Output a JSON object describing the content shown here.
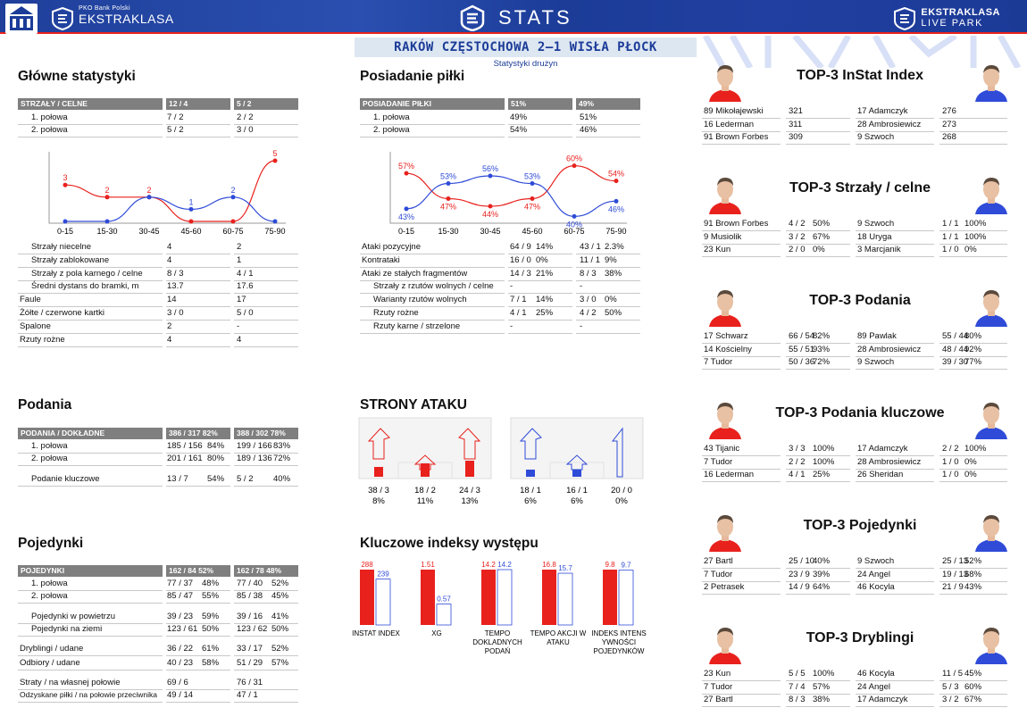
{
  "header": {
    "bank_line": "PKO Bank Polski",
    "league": "EKSTRAKLASA",
    "center_title": "STATS",
    "right_a": "EKSTRAKLASA",
    "right_b": "LIVE PARK",
    "match": "RAKÓW CZĘSTOCHOWA 2–1 WISŁA PŁOCK",
    "subtitle": "Statystyki drużyn"
  },
  "colors": {
    "home": "#e8211d",
    "away": "#2f4bd8",
    "navy": "#1c3c98",
    "grey": "#7f7f7f"
  },
  "glowne": {
    "title": "Główne statystyki",
    "head": [
      "STRZAŁY / CELNE",
      "12 / 4",
      "5 / 2"
    ],
    "halves": [
      [
        "1. połowa",
        "7 / 2",
        "2 / 2"
      ],
      [
        "2. połowa",
        "5 / 2",
        "3 / 0"
      ]
    ],
    "chart_data": {
      "type": "line",
      "categories": [
        "0-15",
        "15-30",
        "30-45",
        "45-60",
        "60-75",
        "75-90"
      ],
      "series": [
        {
          "color": "#e8211d",
          "values": [
            3,
            2,
            2,
            0,
            0,
            5
          ]
        },
        {
          "color": "#2f4bd8",
          "values": [
            0,
            0,
            2,
            1,
            2,
            0
          ]
        }
      ],
      "ylim": [
        0,
        5
      ],
      "labels_home": [
        "3",
        "2",
        "2",
        "",
        "",
        "5"
      ],
      "labels_away": [
        "",
        "",
        "",
        "1",
        "2",
        ""
      ]
    },
    "rows": [
      [
        "Strzały niecelne",
        "4",
        "2",
        true
      ],
      [
        "Strzały zablokowane",
        "4",
        "1",
        true
      ],
      [
        "Strzały z pola karnego / celne",
        "8 / 3",
        "4 / 1",
        true
      ],
      [
        "Średni dystans do bramki, m",
        "13.7",
        "17.6",
        true
      ],
      [
        "Faule",
        "14",
        "17",
        false
      ],
      [
        "Żółte / czerwone kartki",
        "3 / 0",
        "5 / 0",
        false
      ],
      [
        "Spalone",
        "2",
        "-",
        false
      ],
      [
        "Rzuty rożne",
        "4",
        "4",
        false
      ]
    ]
  },
  "posiadanie": {
    "title": "Posiadanie piłki",
    "head": [
      "POSIADANIE PIŁKI",
      "51%",
      "49%"
    ],
    "halves": [
      [
        "1. połowa",
        "49%",
        "51%"
      ],
      [
        "2. połowa",
        "54%",
        "46%"
      ]
    ],
    "chart_data": {
      "type": "line",
      "categories": [
        "0-15",
        "15-30",
        "30-45",
        "45-60",
        "60-75",
        "75-90"
      ],
      "series": [
        {
          "color": "#e8211d",
          "values": [
            57,
            47,
            44,
            47,
            60,
            54
          ]
        },
        {
          "color": "#2f4bd8",
          "values": [
            43,
            53,
            56,
            53,
            40,
            46
          ]
        }
      ],
      "ylim": [
        38,
        62
      ],
      "labels_home": [
        "57%",
        "47%",
        "44%",
        "47%",
        "60%",
        "54%"
      ],
      "labels_away": [
        "43%",
        "53%",
        "56%",
        "53%",
        "40%",
        "46%"
      ]
    },
    "rows": [
      [
        "Ataki pozycyjne",
        "64 / 9",
        "14%",
        "43 / 1",
        "2.3%",
        false
      ],
      [
        "Kontrataki",
        "16 / 0",
        "0%",
        "11 / 1",
        "9%",
        false
      ],
      [
        "Ataki ze stałych fragmentów",
        "14 / 3",
        "21%",
        "8 / 3",
        "38%",
        false
      ],
      [
        "Strzały z rzutów wolnych / celne",
        "-",
        "",
        "-",
        "",
        true
      ],
      [
        "Warianty rzutów wolnych",
        "7 / 1",
        "14%",
        "3 / 0",
        "0%",
        true
      ],
      [
        "Rzuty rożne",
        "4 / 1",
        "25%",
        "4 / 2",
        "50%",
        true
      ],
      [
        "Rzuty karne / strzelone",
        "-",
        "",
        "-",
        "",
        true
      ]
    ]
  },
  "podania": {
    "title": "Podania",
    "head": [
      "PODANIA / DOKŁADNE",
      "386 / 317 82%",
      "388 / 302 78%"
    ],
    "rows": [
      [
        "1. połowa",
        "185 / 156",
        "84%",
        "199 / 166",
        "83%"
      ],
      [
        "2. połowa",
        "201 / 161",
        "80%",
        "189 / 136",
        "72%"
      ],
      [
        "Podanie kluczowe",
        "13 / 7",
        "54%",
        "5 / 2",
        "40%"
      ]
    ]
  },
  "strony": {
    "title": "STRONY ATAKU",
    "home": [
      {
        "v": "38 / 3",
        "p": "8%",
        "pct": 8
      },
      {
        "v": "18 / 2",
        "p": "11%",
        "pct": 11
      },
      {
        "v": "24 / 3",
        "p": "13%",
        "pct": 13
      }
    ],
    "away": [
      {
        "v": "18 / 1",
        "p": "6%",
        "pct": 6
      },
      {
        "v": "16 / 1",
        "p": "6%",
        "pct": 6
      },
      {
        "v": "20 / 0",
        "p": "0%",
        "pct": 0
      }
    ]
  },
  "pojedynki": {
    "title": "Pojedynki",
    "head": [
      "POJEDYNKI",
      "162 / 84 52%",
      "162 / 78 48%"
    ],
    "rows": [
      [
        "1. połowa",
        "77 / 37",
        "48%",
        "77 / 40",
        "52%",
        true
      ],
      [
        "2. połowa",
        "85 / 47",
        "55%",
        "85 / 38",
        "45%",
        true
      ],
      [
        "Pojedynki w powietrzu",
        "39 / 23",
        "59%",
        "39 / 16",
        "41%",
        true
      ],
      [
        "Pojedynki na ziemi",
        "123 / 61",
        "50%",
        "123 / 62",
        "50%",
        true
      ],
      [
        "Dryblingi / udane",
        "36 / 22",
        "61%",
        "33 / 17",
        "52%",
        false
      ],
      [
        "Odbiory / udane",
        "40 / 23",
        "58%",
        "51 / 29",
        "57%",
        false
      ],
      [
        "Straty / na własnej połowie",
        "69 / 6",
        "",
        "76 / 31",
        "",
        false
      ],
      [
        "Odzyskane piłki / na połowie przeciwnika",
        "49 / 14",
        "",
        "47 / 1",
        "",
        false
      ]
    ]
  },
  "kluczowe": {
    "title": "Kluczowe indeksy występu",
    "chart_data": {
      "type": "bar",
      "categories": [
        "INSTAT INDEX",
        "XG",
        "TEMPO DOKLADNYCH PODAŃ",
        "TEMPO AKCJI W ATAKU",
        "INDEKS INTENS YWNOŚCI POJEDYNKÓW"
      ],
      "series": [
        {
          "values": [
            288,
            1.51,
            14.2,
            16.8,
            9.8
          ],
          "labels": [
            "288",
            "1.51",
            "14.2",
            "16.8",
            "9.8"
          ]
        },
        {
          "values": [
            239,
            0.57,
            14.2,
            15.7,
            9.7
          ],
          "labels": [
            "239",
            "0.57",
            "14.2",
            "15.7",
            "9.7"
          ]
        }
      ],
      "label_lines": [
        [
          "INSTAT INDEX"
        ],
        [
          "XG"
        ],
        [
          "TEMPO",
          "DOKLADNYCH",
          "PODAŃ"
        ],
        [
          "TEMPO AKCJI W",
          "ATAKU"
        ],
        [
          "INDEKS INTENS",
          "YWNOŚCI",
          "POJEDYNKÓW"
        ]
      ]
    }
  },
  "top": [
    {
      "title": "TOP-3 InStat Index",
      "home": [
        [
          "89",
          "Mikołajewski",
          "321",
          ""
        ],
        [
          "16",
          "Lederman",
          "311",
          ""
        ],
        [
          "91",
          "Brown Forbes",
          "309",
          ""
        ]
      ],
      "away": [
        [
          "17",
          "Adamczyk",
          "276",
          ""
        ],
        [
          "28",
          "Ambrosiewicz",
          "273",
          ""
        ],
        [
          "9",
          "Szwoch",
          "268",
          ""
        ]
      ]
    },
    {
      "title": "TOP-3 Strzały / celne",
      "home": [
        [
          "91",
          "Brown Forbes",
          "4 / 2",
          "50%"
        ],
        [
          "9",
          "Musiolik",
          "3 / 2",
          "67%"
        ],
        [
          "23",
          "Kun",
          "2 / 0",
          "0%"
        ]
      ],
      "away": [
        [
          "9",
          "Szwoch",
          "1 / 1",
          "100%"
        ],
        [
          "18",
          "Uryga",
          "1 / 1",
          "100%"
        ],
        [
          "3",
          "Marcjanik",
          "1 / 0",
          "0%"
        ]
      ]
    },
    {
      "title": "TOP-3 Podania",
      "home": [
        [
          "17",
          "Schwarz",
          "66 / 54",
          "82%"
        ],
        [
          "14",
          "Kościelny",
          "55 / 51",
          "93%"
        ],
        [
          "7",
          "Tudor",
          "50 / 36",
          "72%"
        ]
      ],
      "away": [
        [
          "89",
          "Pawlak",
          "55 / 44",
          "80%"
        ],
        [
          "28",
          "Ambrosiewicz",
          "48 / 44",
          "92%"
        ],
        [
          "9",
          "Szwoch",
          "39 / 30",
          "77%"
        ]
      ]
    },
    {
      "title": "TOP-3 Podania kluczowe",
      "home": [
        [
          "43",
          "Tijanic",
          "3 / 3",
          "100%"
        ],
        [
          "7",
          "Tudor",
          "2 / 2",
          "100%"
        ],
        [
          "16",
          "Lederman",
          "4 / 1",
          "25%"
        ]
      ],
      "away": [
        [
          "17",
          "Adamczyk",
          "2 / 2",
          "100%"
        ],
        [
          "28",
          "Ambrosiewicz",
          "1 / 0",
          "0%"
        ],
        [
          "26",
          "Sheridan",
          "1 / 0",
          "0%"
        ]
      ]
    },
    {
      "title": "TOP-3 Pojedynki",
      "home": [
        [
          "27",
          "Bartl",
          "25 / 10",
          "40%"
        ],
        [
          "7",
          "Tudor",
          "23 / 9",
          "39%"
        ],
        [
          "2",
          "Petrasek",
          "14 / 9",
          "64%"
        ]
      ],
      "away": [
        [
          "9",
          "Szwoch",
          "25 / 13",
          "52%"
        ],
        [
          "24",
          "Angel",
          "19 / 13",
          "68%"
        ],
        [
          "46",
          "Kocyla",
          "21 / 9",
          "43%"
        ]
      ]
    },
    {
      "title": "TOP-3 Dryblingi",
      "home": [
        [
          "23",
          "Kun",
          "5 / 5",
          "100%"
        ],
        [
          "7",
          "Tudor",
          "7 / 4",
          "57%"
        ],
        [
          "27",
          "Bartl",
          "8 / 3",
          "38%"
        ]
      ],
      "away": [
        [
          "46",
          "Kocyla",
          "11 / 5",
          "45%"
        ],
        [
          "24",
          "Angel",
          "5 / 3",
          "60%"
        ],
        [
          "17",
          "Adamczyk",
          "3 / 2",
          "67%"
        ]
      ]
    }
  ]
}
